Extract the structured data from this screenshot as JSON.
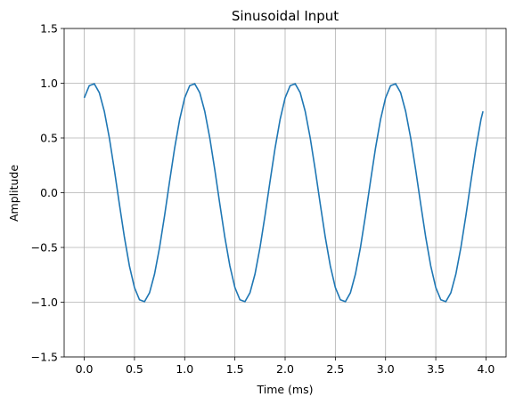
{
  "chart_data": {
    "type": "line",
    "title": "Sinusoidal Input",
    "xlabel": "Time (ms)",
    "ylabel": "Amplitude",
    "xlim": [
      -0.2,
      4.2
    ],
    "ylim": [
      -1.5,
      1.5
    ],
    "xticks": [
      0.0,
      0.5,
      1.0,
      1.5,
      2.0,
      2.5,
      3.0,
      3.5,
      4.0
    ],
    "xtick_labels": [
      "0.0",
      "0.5",
      "1.0",
      "1.5",
      "2.0",
      "2.5",
      "3.0",
      "3.5",
      "4.0"
    ],
    "yticks": [
      -1.5,
      -1.0,
      -0.5,
      0.0,
      0.5,
      1.0,
      1.5
    ],
    "ytick_labels": [
      "−1.5",
      "−1.0",
      "−0.5",
      "0.0",
      "0.5",
      "1.0",
      "1.5"
    ],
    "grid": true,
    "series": [
      {
        "color": "#1f77b4",
        "x": [
          0.0,
          0.05,
          0.1,
          0.15,
          0.2,
          0.25,
          0.3,
          0.35,
          0.4,
          0.45,
          0.5,
          0.55,
          0.6,
          0.65,
          0.7,
          0.75,
          0.8,
          0.85,
          0.9,
          0.95,
          1.0,
          1.05,
          1.1,
          1.15,
          1.2,
          1.25,
          1.3,
          1.35,
          1.4,
          1.45,
          1.5,
          1.55,
          1.6,
          1.65,
          1.7,
          1.75,
          1.8,
          1.85,
          1.9,
          1.95,
          2.0,
          2.05,
          2.1,
          2.15,
          2.2,
          2.25,
          2.3,
          2.35,
          2.4,
          2.45,
          2.5,
          2.55,
          2.6,
          2.65,
          2.7,
          2.75,
          2.8,
          2.85,
          2.9,
          2.95,
          3.0,
          3.05,
          3.1,
          3.15,
          3.2,
          3.25,
          3.3,
          3.35,
          3.4,
          3.45,
          3.5,
          3.55,
          3.6,
          3.65,
          3.7,
          3.75,
          3.8,
          3.85,
          3.9,
          3.95,
          3.97
        ],
        "y": [
          0.866,
          0.978,
          0.995,
          0.914,
          0.743,
          0.5,
          0.208,
          -0.105,
          -0.407,
          -0.669,
          -0.866,
          -0.978,
          -0.995,
          -0.914,
          -0.743,
          -0.5,
          -0.208,
          0.105,
          0.407,
          0.669,
          0.866,
          0.978,
          0.995,
          0.914,
          0.743,
          0.5,
          0.208,
          -0.105,
          -0.407,
          -0.669,
          -0.866,
          -0.978,
          -0.995,
          -0.914,
          -0.743,
          -0.5,
          -0.208,
          0.105,
          0.407,
          0.669,
          0.866,
          0.978,
          0.995,
          0.914,
          0.743,
          0.5,
          0.208,
          -0.105,
          -0.407,
          -0.669,
          -0.866,
          -0.978,
          -0.995,
          -0.914,
          -0.743,
          -0.5,
          -0.208,
          0.105,
          0.407,
          0.669,
          0.866,
          0.978,
          0.995,
          0.914,
          0.743,
          0.5,
          0.208,
          -0.105,
          -0.407,
          -0.669,
          -0.866,
          -0.978,
          -0.995,
          -0.914,
          -0.743,
          -0.5,
          -0.208,
          0.105,
          0.407,
          0.669,
          0.743
        ]
      }
    ]
  }
}
